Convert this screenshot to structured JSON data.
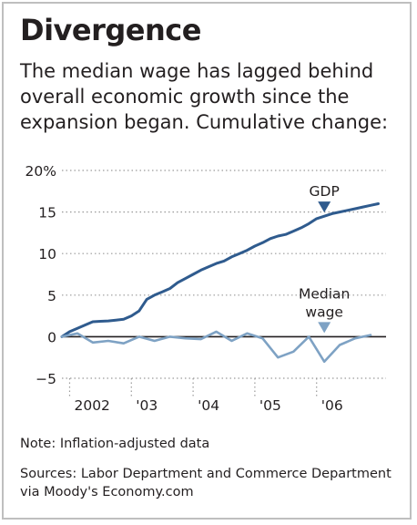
{
  "title": "Divergence",
  "subtitle": "The median wage has lagged behind overall economic growth since the expansion began. Cumulative change:",
  "note": "Note: Inflation-adjusted data",
  "sources": "Sources: Labor Department and Commerce Department via Moody's Economy.com",
  "colors": {
    "gdp": "#2f5b8e",
    "median_wage": "#7ea2c4",
    "gridline": "#9a9a9a",
    "zero_line": "#231f20"
  },
  "chart_data": {
    "type": "line",
    "ylim": [
      -5,
      20
    ],
    "yticks": [
      20,
      15,
      10,
      5,
      0,
      -5
    ],
    "ytick_labels": [
      "20%",
      "15",
      "10",
      "5",
      "0",
      "−5"
    ],
    "xlim": [
      2001.875,
      2007.125
    ],
    "xticks": [
      2002,
      2003,
      2004,
      2005,
      2006
    ],
    "xtick_labels": [
      "2002",
      "'03",
      "'04",
      "'05",
      "'06"
    ],
    "grid": true,
    "series": [
      {
        "name": "GDP",
        "x": [
          2001.875,
          2002,
          2002.125,
          2002.25,
          2002.375,
          2002.5,
          2002.625,
          2002.75,
          2002.875,
          2003,
          2003.125,
          2003.25,
          2003.375,
          2003.5,
          2003.625,
          2003.75,
          2003.875,
          2004,
          2004.125,
          2004.25,
          2004.375,
          2004.5,
          2004.625,
          2004.75,
          2004.875,
          2005,
          2005.125,
          2005.25,
          2005.375,
          2005.5,
          2005.625,
          2005.75,
          2005.875,
          2006,
          2006.125,
          2006.25,
          2006.375,
          2006.5,
          2006.625,
          2006.75,
          2006.875,
          2007
        ],
        "values": [
          0,
          0.6,
          1.0,
          1.4,
          1.8,
          1.85,
          1.9,
          2.0,
          2.1,
          2.5,
          3.1,
          4.5,
          5.0,
          5.4,
          5.8,
          6.5,
          7.0,
          7.5,
          8.0,
          8.4,
          8.8,
          9.1,
          9.6,
          10.0,
          10.4,
          10.9,
          11.3,
          11.8,
          12.1,
          12.3,
          12.7,
          13.1,
          13.6,
          14.2,
          14.5,
          14.8,
          15.0,
          15.2,
          15.4,
          15.6,
          15.8,
          16.0
        ]
      },
      {
        "name": "Median wage",
        "x": [
          2001.875,
          2002.125,
          2002.375,
          2002.625,
          2002.875,
          2003.125,
          2003.375,
          2003.625,
          2003.875,
          2004.125,
          2004.375,
          2004.625,
          2004.875,
          2005.125,
          2005.375,
          2005.625,
          2005.875,
          2006.125,
          2006.375,
          2006.625,
          2006.875
        ],
        "values": [
          0,
          0.4,
          -0.7,
          -0.5,
          -0.8,
          0,
          -0.5,
          0,
          -0.2,
          -0.3,
          0.6,
          -0.5,
          0.4,
          -0.2,
          -2.5,
          -1.8,
          0,
          -3.0,
          -1.0,
          -0.2,
          0.2
        ]
      }
    ],
    "annotations": [
      {
        "label": "GDP",
        "series": "GDP",
        "x": 2006.125,
        "y": 14.5
      },
      {
        "label": "Median wage",
        "series": "Median wage",
        "x": 2006.125,
        "y": 0
      }
    ]
  }
}
